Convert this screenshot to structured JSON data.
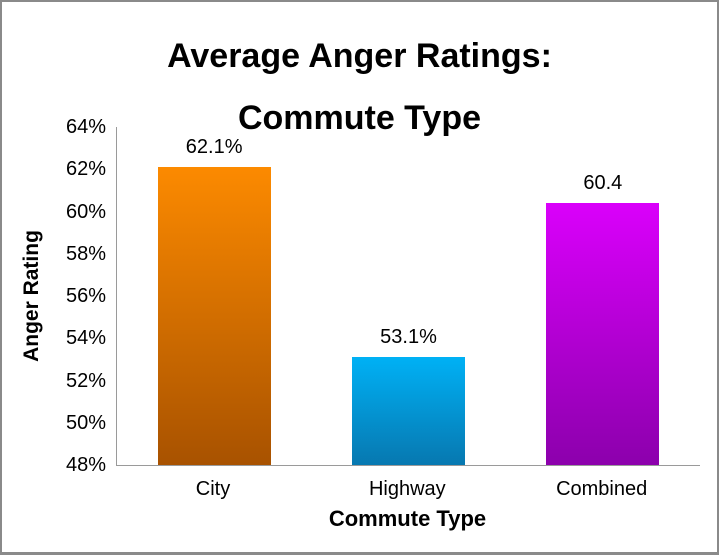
{
  "title": {
    "line1": "Average Anger Ratings:",
    "line2": "Commute Type"
  },
  "chart_data": {
    "type": "bar",
    "title": "Average Anger Ratings: Commute Type",
    "categories": [
      "City",
      "Highway",
      "Combined"
    ],
    "values": [
      62.1,
      53.1,
      60.4
    ],
    "data_labels": [
      "62.1%",
      "53.1%",
      "60.4"
    ],
    "xlabel": "Commute Type",
    "ylabel": "Anger Rating",
    "ylim": [
      48,
      64
    ],
    "ytick_step": 2,
    "ytick_labels": [
      "48%",
      "50%",
      "52%",
      "54%",
      "56%",
      "58%",
      "60%",
      "62%",
      "64%"
    ],
    "grid": false,
    "legend": false,
    "axis_color": "#9a9a9a",
    "bar_gradients": [
      {
        "top": "#FC8A00",
        "bottom": "#A85200"
      },
      {
        "top": "#00B1F5",
        "bottom": "#0778B0"
      },
      {
        "top": "#DA00FB",
        "bottom": "#8C00AC"
      }
    ]
  }
}
